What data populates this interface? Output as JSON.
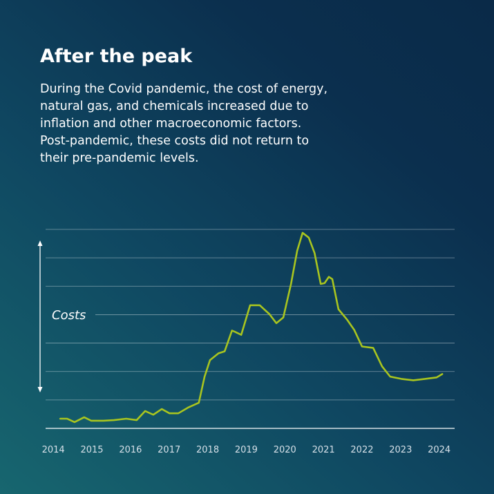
{
  "chart_data": {
    "type": "line",
    "title": "After the peak",
    "subtitle": [
      "During the Covid pandemic, the cost of energy,",
      "natural gas, and chemicals increased due to",
      "inflation and other macroeconomic factors.",
      "Post-pandemic, these costs did not return to",
      "their pre-pandemic levels."
    ],
    "y_label": "Costs",
    "x": [
      2014.18,
      2014.36,
      2014.55,
      2014.8,
      2014.98,
      2015.3,
      2015.57,
      2015.89,
      2016.16,
      2016.38,
      2016.59,
      2016.81,
      2017.01,
      2017.24,
      2017.49,
      2017.77,
      2017.92,
      2018.06,
      2018.28,
      2018.44,
      2018.63,
      2018.72,
      2018.87,
      2019.1,
      2019.35,
      2019.6,
      2019.78,
      2019.96,
      2020.16,
      2020.32,
      2020.46,
      2020.62,
      2020.77,
      2020.93,
      2021.03,
      2021.14,
      2021.23,
      2021.39,
      2021.61,
      2021.8,
      2022.0,
      2022.29,
      2022.52,
      2022.73,
      2023.02,
      2023.33,
      2023.63,
      2023.93,
      2024.08
    ],
    "values": [
      0.34,
      0.34,
      0.22,
      0.39,
      0.27,
      0.27,
      0.29,
      0.34,
      0.29,
      0.61,
      0.48,
      0.68,
      0.53,
      0.53,
      0.73,
      0.9,
      1.82,
      2.4,
      2.64,
      2.71,
      3.44,
      3.39,
      3.29,
      4.33,
      4.33,
      4.02,
      3.7,
      3.9,
      5.08,
      6.25,
      6.88,
      6.71,
      6.17,
      5.08,
      5.11,
      5.33,
      5.25,
      4.19,
      3.83,
      3.46,
      2.88,
      2.83,
      2.18,
      1.82,
      1.74,
      1.69,
      1.74,
      1.79,
      1.91
    ],
    "color": "#a9c51f",
    "xlim": [
      2013.8,
      2024.4
    ],
    "xticks": [
      2014,
      2015,
      2016,
      2017,
      2018,
      2019,
      2020,
      2021,
      2022,
      2023,
      2024
    ],
    "ylim": [
      0,
      7
    ],
    "yticks": [
      0,
      1,
      2,
      3,
      4,
      5,
      6,
      7
    ],
    "ytick_labels": false,
    "grid": true
  }
}
